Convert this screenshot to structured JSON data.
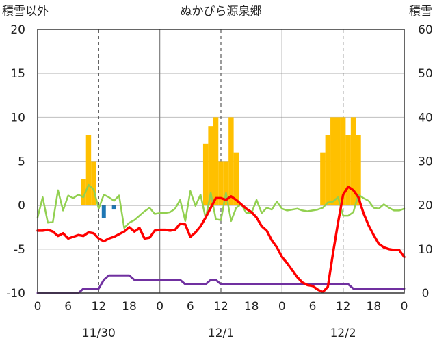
{
  "chart_data": {
    "type": "bar+line",
    "title": "ぬかびら源泉郷",
    "left_axis_label": "積雪以外",
    "right_axis_label": "積雪",
    "y_left": {
      "min": -10,
      "max": 20,
      "ticks": [
        -10,
        -5,
        0,
        5,
        10,
        15,
        20
      ]
    },
    "y_right": {
      "min": 0,
      "max": 60,
      "ticks": [
        0,
        10,
        20,
        30,
        40,
        50,
        60
      ]
    },
    "x": {
      "start_hour": 0,
      "end_hour": 72,
      "tick_hours": [
        0,
        6,
        12,
        18,
        24,
        30,
        36,
        42,
        48,
        54,
        60,
        66,
        72
      ],
      "tick_labels": [
        "0",
        "6",
        "12",
        "18",
        "0",
        "6",
        "12",
        "18",
        "0",
        "6",
        "12",
        "18",
        "0"
      ]
    },
    "dates": [
      {
        "label": "11/30",
        "hour": 12
      },
      {
        "label": "12/1",
        "hour": 36
      },
      {
        "label": "12/2",
        "hour": 60
      }
    ],
    "day_separators": [
      24,
      48
    ],
    "noon_marks": [
      12,
      36,
      60
    ],
    "colors": {
      "snowfall": "#FFC000",
      "negative_bar": "#1F77B4",
      "temperature": "#FF0000",
      "green_line": "#92D050",
      "snow_depth": "#7030A0",
      "axis": "#333333",
      "grid": "#BFBFBF",
      "separator": "#808080",
      "dashed": "#595959"
    },
    "snowfall_bars": [
      {
        "hour": 9,
        "value": 3
      },
      {
        "hour": 10,
        "value": 8
      },
      {
        "hour": 11,
        "value": 5
      },
      {
        "hour": 33,
        "value": 7
      },
      {
        "hour": 34,
        "value": 9
      },
      {
        "hour": 35,
        "value": 10
      },
      {
        "hour": 36,
        "value": 5
      },
      {
        "hour": 37,
        "value": 5
      },
      {
        "hour": 38,
        "value": 10
      },
      {
        "hour": 39,
        "value": 6
      },
      {
        "hour": 56,
        "value": 6
      },
      {
        "hour": 57,
        "value": 8
      },
      {
        "hour": 58,
        "value": 10
      },
      {
        "hour": 59,
        "value": 10
      },
      {
        "hour": 60,
        "value": 10
      },
      {
        "hour": 61,
        "value": 8
      },
      {
        "hour": 62,
        "value": 10
      },
      {
        "hour": 63,
        "value": 8
      }
    ],
    "negative_bars": [
      {
        "hour": 13,
        "value": -1.5
      },
      {
        "hour": 15,
        "value": -0.5
      }
    ],
    "temperature": [
      [
        0,
        -2.9
      ],
      [
        1,
        -2.9
      ],
      [
        2,
        -2.8
      ],
      [
        3,
        -3.0
      ],
      [
        4,
        -3.5
      ],
      [
        5,
        -3.2
      ],
      [
        6,
        -3.8
      ],
      [
        7,
        -3.6
      ],
      [
        8,
        -3.4
      ],
      [
        9,
        -3.5
      ],
      [
        10,
        -3.1
      ],
      [
        11,
        -3.2
      ],
      [
        12,
        -3.8
      ],
      [
        13,
        -4.1
      ],
      [
        14,
        -3.8
      ],
      [
        15,
        -3.6
      ],
      [
        16,
        -3.3
      ],
      [
        17,
        -3.0
      ],
      [
        18,
        -2.5
      ],
      [
        19,
        -3.0
      ],
      [
        20,
        -2.6
      ],
      [
        21,
        -3.8
      ],
      [
        22,
        -3.7
      ],
      [
        23,
        -2.9
      ],
      [
        24,
        -2.8
      ],
      [
        25,
        -2.8
      ],
      [
        26,
        -2.9
      ],
      [
        27,
        -2.8
      ],
      [
        28,
        -2.1
      ],
      [
        29,
        -2.2
      ],
      [
        30,
        -3.6
      ],
      [
        31,
        -3.1
      ],
      [
        32,
        -2.4
      ],
      [
        33,
        -1.4
      ],
      [
        34,
        -0.3
      ],
      [
        35,
        0.8
      ],
      [
        36,
        0.8
      ],
      [
        37,
        0.6
      ],
      [
        38,
        1.0
      ],
      [
        39,
        0.6
      ],
      [
        40,
        0.1
      ],
      [
        41,
        -0.4
      ],
      [
        42,
        -0.8
      ],
      [
        43,
        -1.4
      ],
      [
        44,
        -2.4
      ],
      [
        45,
        -2.9
      ],
      [
        46,
        -4.0
      ],
      [
        47,
        -4.8
      ],
      [
        48,
        -5.9
      ],
      [
        49,
        -6.6
      ],
      [
        50,
        -7.4
      ],
      [
        51,
        -8.2
      ],
      [
        52,
        -8.8
      ],
      [
        53,
        -9.1
      ],
      [
        54,
        -9.2
      ],
      [
        55,
        -9.6
      ],
      [
        56,
        -9.9
      ],
      [
        57,
        -9.3
      ],
      [
        58,
        -5.5
      ],
      [
        59,
        -2.0
      ],
      [
        60,
        1.2
      ],
      [
        61,
        2.1
      ],
      [
        62,
        1.7
      ],
      [
        63,
        0.9
      ],
      [
        64,
        -0.9
      ],
      [
        65,
        -2.3
      ],
      [
        66,
        -3.4
      ],
      [
        67,
        -4.4
      ],
      [
        68,
        -4.8
      ],
      [
        69,
        -5.0
      ],
      [
        70,
        -5.1
      ],
      [
        71,
        -5.1
      ],
      [
        72,
        -5.9
      ]
    ],
    "green_line": [
      [
        0,
        -1.4
      ],
      [
        1,
        0.9
      ],
      [
        2,
        -2.0
      ],
      [
        3,
        -1.9
      ],
      [
        4,
        1.7
      ],
      [
        5,
        -0.6
      ],
      [
        6,
        1.1
      ],
      [
        7,
        0.8
      ],
      [
        8,
        1.2
      ],
      [
        9,
        0.9
      ],
      [
        10,
        2.3
      ],
      [
        11,
        1.8
      ],
      [
        12,
        -0.4
      ],
      [
        13,
        1.2
      ],
      [
        14,
        0.9
      ],
      [
        15,
        0.5
      ],
      [
        16,
        1.1
      ],
      [
        17,
        -2.6
      ],
      [
        18,
        -2.0
      ],
      [
        19,
        -1.7
      ],
      [
        20,
        -1.2
      ],
      [
        21,
        -0.7
      ],
      [
        22,
        -0.3
      ],
      [
        23,
        -1.0
      ],
      [
        24,
        -0.9
      ],
      [
        25,
        -0.9
      ],
      [
        26,
        -0.8
      ],
      [
        27,
        -0.4
      ],
      [
        28,
        0.6
      ],
      [
        29,
        -1.8
      ],
      [
        30,
        1.6
      ],
      [
        31,
        -0.1
      ],
      [
        32,
        1.2
      ],
      [
        33,
        -1.5
      ],
      [
        34,
        1.4
      ],
      [
        35,
        -1.6
      ],
      [
        36,
        -1.7
      ],
      [
        37,
        1.4
      ],
      [
        38,
        -1.8
      ],
      [
        39,
        -0.3
      ],
      [
        40,
        0.1
      ],
      [
        41,
        -0.9
      ],
      [
        42,
        -0.9
      ],
      [
        43,
        0.6
      ],
      [
        44,
        -0.9
      ],
      [
        45,
        -0.3
      ],
      [
        46,
        -0.5
      ],
      [
        47,
        0.4
      ],
      [
        48,
        -0.4
      ],
      [
        49,
        -0.6
      ],
      [
        50,
        -0.5
      ],
      [
        51,
        -0.4
      ],
      [
        52,
        -0.6
      ],
      [
        53,
        -0.7
      ],
      [
        54,
        -0.6
      ],
      [
        55,
        -0.5
      ],
      [
        56,
        -0.3
      ],
      [
        57,
        0.3
      ],
      [
        58,
        0.4
      ],
      [
        59,
        0.9
      ],
      [
        60,
        -1.2
      ],
      [
        61,
        -1.2
      ],
      [
        62,
        -0.8
      ],
      [
        63,
        1.2
      ],
      [
        64,
        0.8
      ],
      [
        65,
        0.5
      ],
      [
        66,
        -0.3
      ],
      [
        67,
        -0.4
      ],
      [
        68,
        0.1
      ],
      [
        69,
        -0.3
      ],
      [
        70,
        -0.6
      ],
      [
        71,
        -0.6
      ],
      [
        72,
        -0.4
      ]
    ],
    "snow_depth": [
      [
        0,
        0
      ],
      [
        8,
        0
      ],
      [
        9,
        1
      ],
      [
        10,
        1
      ],
      [
        11,
        1
      ],
      [
        12,
        1
      ],
      [
        13,
        3
      ],
      [
        14,
        4
      ],
      [
        18,
        4
      ],
      [
        19,
        3
      ],
      [
        24,
        3
      ],
      [
        28,
        3
      ],
      [
        29,
        2
      ],
      [
        33,
        2
      ],
      [
        34,
        3
      ],
      [
        35,
        3
      ],
      [
        36,
        2
      ],
      [
        53,
        2
      ],
      [
        54,
        2
      ],
      [
        61,
        2
      ],
      [
        62,
        1
      ],
      [
        66,
        1
      ],
      [
        72,
        1
      ]
    ]
  }
}
